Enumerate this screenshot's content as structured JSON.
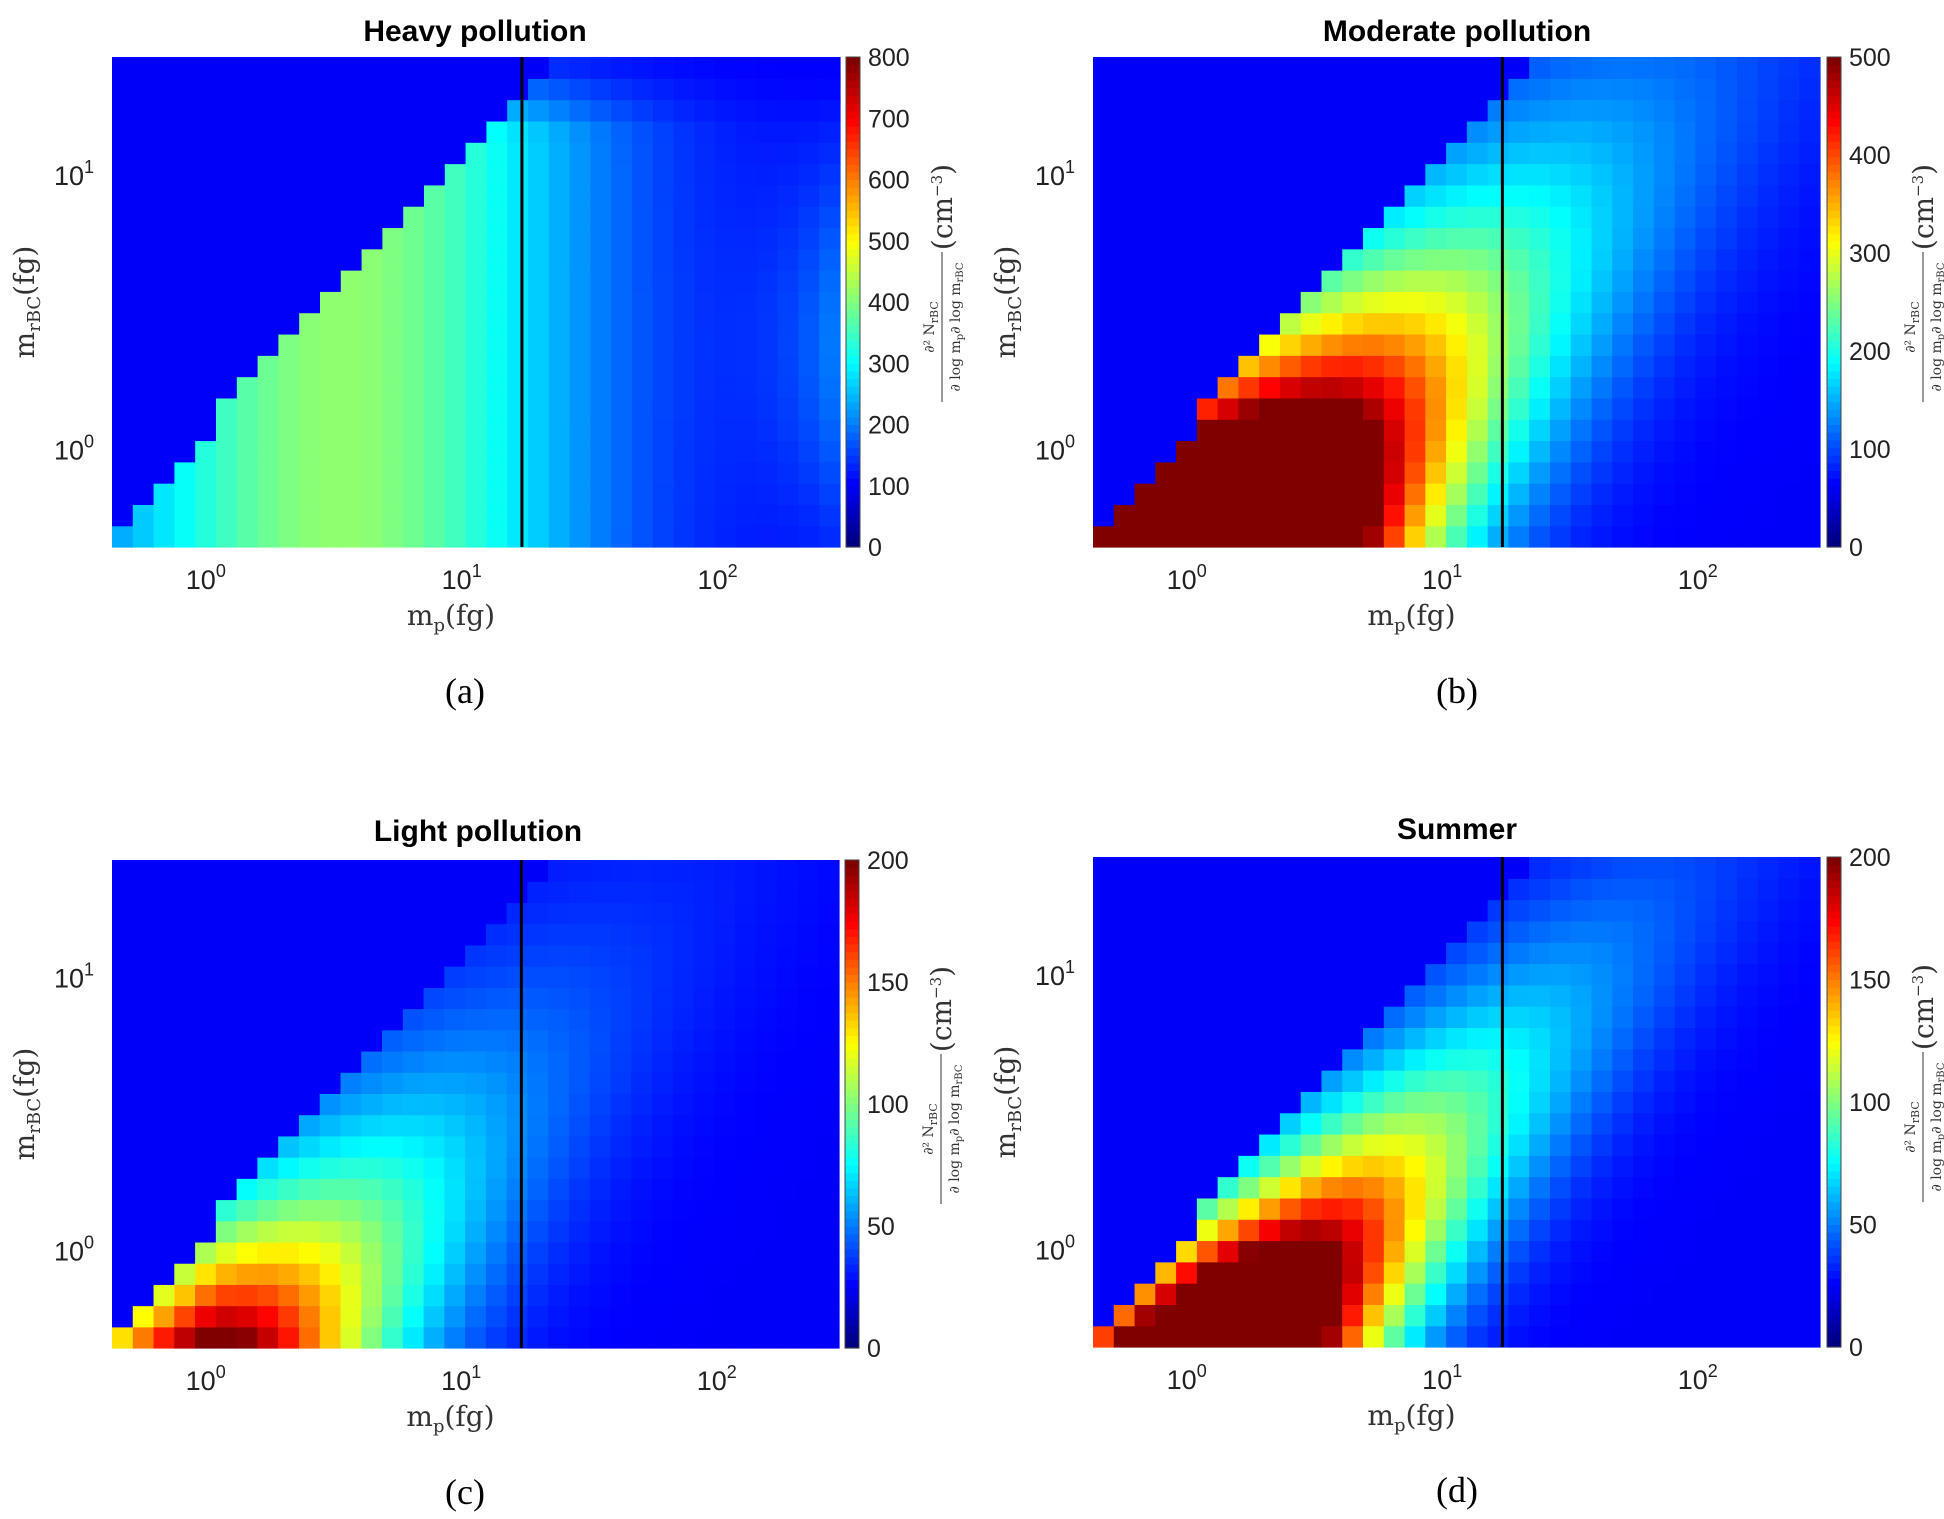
{
  "chart_data": [
    {
      "type": "heatmap",
      "title": "Heavy pollution",
      "caption": "(a)",
      "xlabel": "m_p(fg)",
      "ylabel": "m_rBC(fg)",
      "x_scale": "log",
      "y_scale": "log",
      "xlim": [
        0.4,
        280
      ],
      "ylim": [
        0.44,
        27
      ],
      "xticks": [
        "10^0",
        "10^1",
        "10^2"
      ],
      "yticks": [
        "10^0",
        "10^1"
      ],
      "colorbar_label": "∂²N_rBC / ∂log m_p ∂log m_rBC (cm^-3)",
      "colorbar_ticks": [
        0,
        100,
        200,
        300,
        400,
        500,
        600,
        700,
        800
      ],
      "clim": [
        0,
        800
      ],
      "vertical_line_x": 16,
      "model": {
        "mode": "heavy",
        "peak": [
          3.6,
          0.38
        ],
        "sx": 0.55,
        "sy": 0.48,
        "amp": 1100,
        "base": 360,
        "vmax": 800
      }
    },
    {
      "type": "heatmap",
      "title": "Moderate pollution",
      "caption": "(b)",
      "xlabel": "m_p(fg)",
      "ylabel": "m_rBC(fg)",
      "x_scale": "log",
      "y_scale": "log",
      "xlim": [
        0.4,
        280
      ],
      "ylim": [
        0.44,
        27
      ],
      "xticks": [
        "10^0",
        "10^1",
        "10^2"
      ],
      "yticks": [
        "10^0",
        "10^1"
      ],
      "colorbar_label": "∂²N_rBC / ∂log m_p ∂log m_rBC (cm^-3)",
      "colorbar_ticks": [
        0,
        100,
        200,
        300,
        400,
        500
      ],
      "clim": [
        0,
        500
      ],
      "vertical_line_x": 16,
      "model": {
        "mode": "edge",
        "amp": 700,
        "w": 0.55,
        "kx": 0.75,
        "ky": 0.9,
        "vmax": 500
      }
    },
    {
      "type": "heatmap",
      "title": "Light pollution",
      "caption": "(c)",
      "xlabel": "m_p(fg)",
      "ylabel": "m_rBC(fg)",
      "x_scale": "log",
      "y_scale": "log",
      "xlim": [
        0.4,
        280
      ],
      "ylim": [
        0.44,
        27
      ],
      "xticks": [
        "10^0",
        "10^1",
        "10^2"
      ],
      "yticks": [
        "10^0",
        "10^1"
      ],
      "colorbar_label": "∂²N_rBC / ∂log m_p ∂log m_rBC (cm^-3)",
      "colorbar_ticks": [
        0,
        50,
        100,
        150,
        200
      ],
      "clim": [
        0,
        200
      ],
      "vertical_line_x": 16,
      "model": {
        "mode": "edge",
        "amp": 130,
        "w": 0.5,
        "kx": 1.0,
        "ky": 0.85,
        "vmax": 200
      }
    },
    {
      "type": "heatmap",
      "title": "Summer",
      "caption": "(d)",
      "xlabel": "m_p(fg)",
      "ylabel": "m_rBC(fg)",
      "x_scale": "log",
      "y_scale": "log",
      "xlim": [
        0.4,
        280
      ],
      "ylim": [
        0.44,
        27
      ],
      "xticks": [
        "10^0",
        "10^1",
        "10^2"
      ],
      "yticks": [
        "10^0",
        "10^1"
      ],
      "colorbar_label": "∂²N_rBC / ∂log m_p ∂log m_rBC (cm^-3)",
      "colorbar_ticks": [
        0,
        50,
        100,
        150,
        200
      ],
      "clim": [
        0,
        200
      ],
      "vertical_line_x": 16,
      "model": {
        "mode": "edge",
        "amp": 240,
        "w": 0.4,
        "kx": 0.8,
        "ky": 0.95,
        "vmax": 200
      }
    }
  ]
}
